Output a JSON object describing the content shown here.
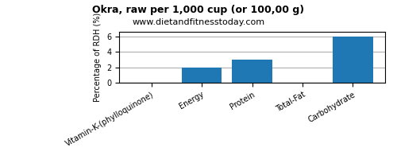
{
  "chart_data": {
    "type": "bar",
    "title": "Okra, raw per 1,000 cup (or 100,00 g)",
    "subtitle": "www.dietandfitnesstoday.com",
    "ylabel": "Percentage of RDH (%)",
    "categories": [
      "Vitamin-K-(phylloquinone)",
      "Energy",
      "Protein",
      "Total-Fat",
      "Carbohydrate"
    ],
    "values": [
      0,
      2,
      3,
      0,
      6
    ],
    "ylim": [
      0,
      6.6
    ],
    "yticks": [
      0,
      2,
      4,
      6
    ],
    "grid": true
  }
}
